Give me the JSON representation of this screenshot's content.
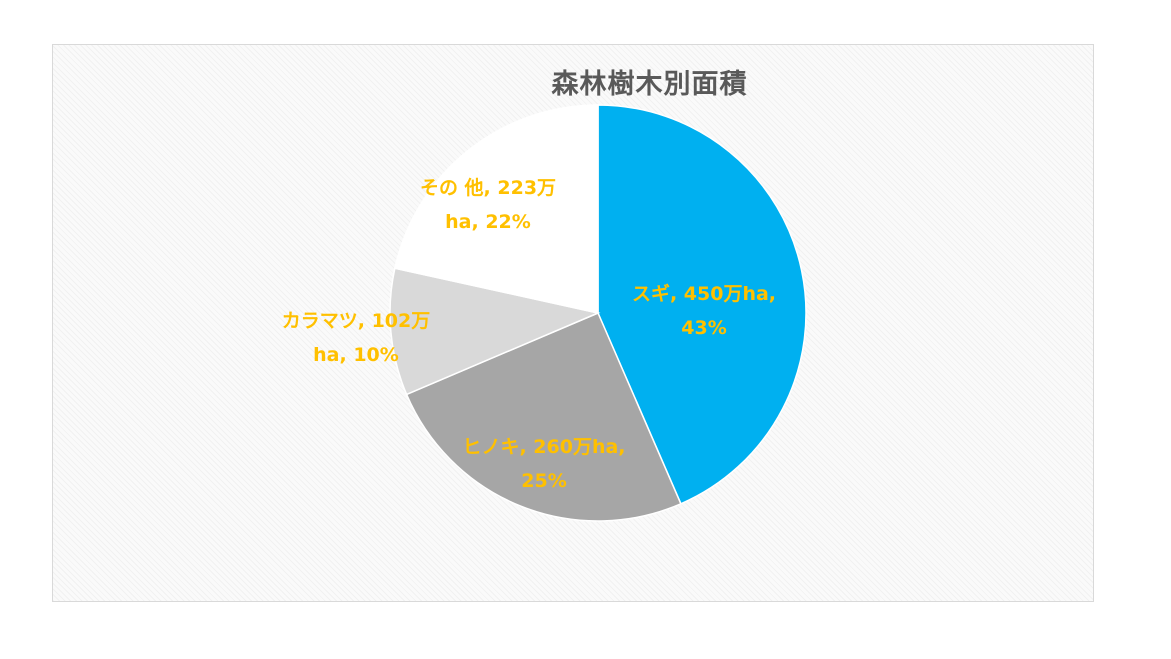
{
  "chart_data": {
    "type": "pie",
    "title": "森林樹木別面積",
    "categories": [
      "スギ",
      "ヒノキ",
      "カラマツ",
      "その他"
    ],
    "values": [
      450,
      260,
      102,
      223
    ],
    "unit": "万ha",
    "percentages": [
      43,
      25,
      10,
      22
    ],
    "colors": [
      "#00B0F0",
      "#A6A6A6",
      "#D9D9D9",
      "#FFFFFF"
    ],
    "label_color": "#FFC000",
    "labels": [
      [
        "スギ, 450万ha,",
        "43%"
      ],
      [
        "ヒノキ, 260万ha,",
        "25%"
      ],
      [
        "カラマツ, 102万",
        "ha, 10%"
      ],
      [
        "その 他, 223万",
        "ha, 22%"
      ]
    ],
    "legend": "none"
  }
}
